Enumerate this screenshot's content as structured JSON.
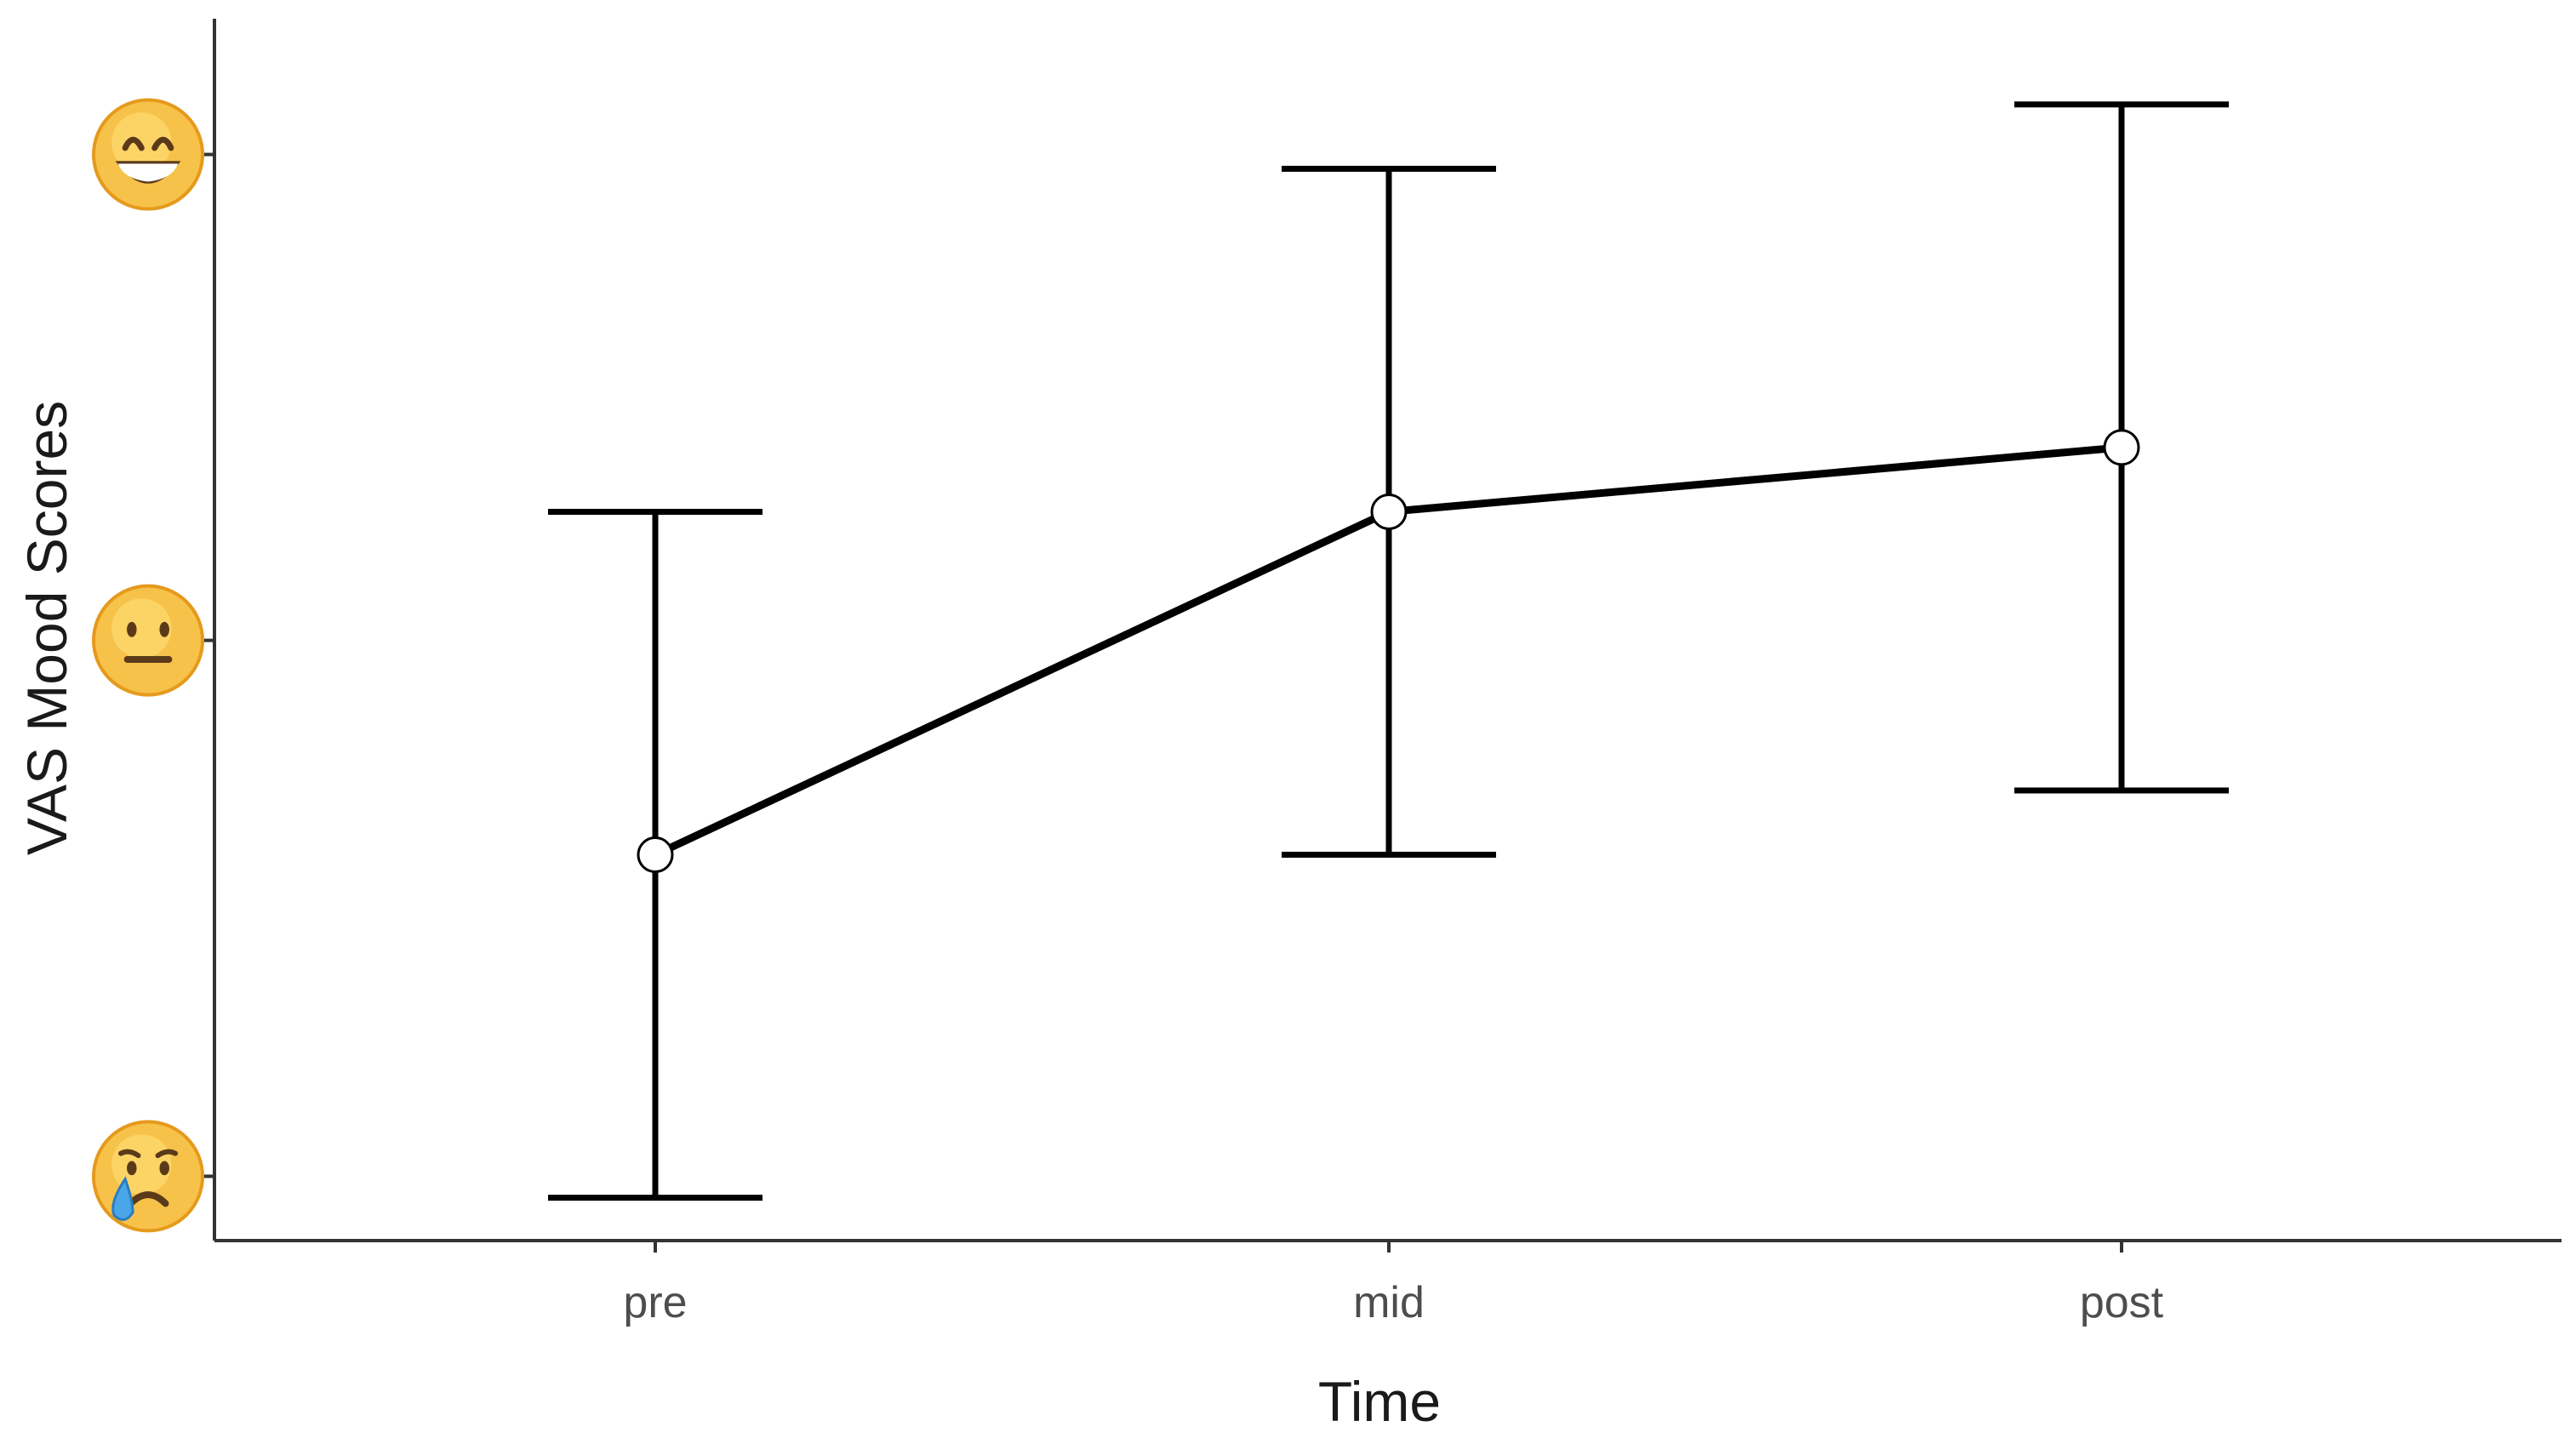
{
  "chart_data": {
    "type": "line",
    "xlabel": "Time",
    "ylabel": "VAS Mood Scores",
    "categories": [
      "pre",
      "mid",
      "post"
    ],
    "series": [
      {
        "values": [
          3.0,
          7.8,
          8.7
        ],
        "error_lower": [
          -1.8,
          3.0,
          3.9
        ],
        "error_upper": [
          7.8,
          12.6,
          13.5
        ]
      }
    ],
    "ylim": [
      -2.4,
      14.7
    ],
    "y_tick_values": [
      -1.5,
      6.0,
      12.8
    ],
    "y_tick_icons": [
      "crying-face-emoji",
      "neutral-face-emoji",
      "grinning-face-emoji"
    ],
    "grid": false,
    "legend": "none",
    "colors": {
      "line": "#000000",
      "marker_fill": "#ffffff",
      "axis": "#333333"
    }
  }
}
